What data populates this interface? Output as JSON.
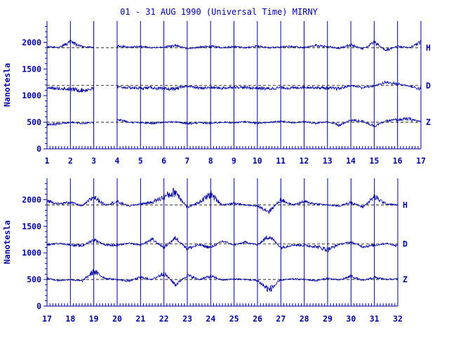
{
  "colors": {
    "ink": "#0000a0",
    "background": "#ffffff"
  },
  "chart_data": {
    "type": "line",
    "title": "01 - 31 AUG 1990 (Universal Time) MIRNY",
    "panels": [
      {
        "xlim": [
          1,
          17
        ],
        "xticks": [
          "1",
          "2",
          "3",
          "4",
          "5",
          "6",
          "7",
          "8",
          "9",
          "10",
          "11",
          "12",
          "13",
          "14",
          "15",
          "16",
          "17"
        ],
        "ylabel": "Nanotesla",
        "ylim": [
          0,
          2400
        ],
        "yticks": [
          "0",
          "500",
          "1000",
          "1500",
          "2000"
        ],
        "grid_x": true,
        "data_gap": [
          3,
          4
        ],
        "series": [
          {
            "name": "H",
            "baseline": 1900,
            "x": [
              1,
              1.5,
              2,
              2.5,
              3,
              4,
              4.5,
              5,
              5.5,
              6,
              6.5,
              7,
              7.5,
              8,
              8.5,
              9,
              9.5,
              10,
              10.5,
              11,
              11.5,
              12,
              12.5,
              13,
              13.5,
              14,
              14.5,
              15,
              15.5,
              16,
              16.5,
              17
            ],
            "values": [
              1920,
              1900,
              2000,
              1920,
              1900,
              1930,
              1910,
              1920,
              1900,
              1910,
              1940,
              1880,
              1910,
              1930,
              1900,
              1920,
              1900,
              1930,
              1900,
              1910,
              1920,
              1900,
              1940,
              1920,
              1890,
              1950,
              1880,
              2000,
              1850,
              1920,
              1900,
              2000
            ]
          },
          {
            "name": "D",
            "baseline": 1190,
            "x": [
              1,
              1.5,
              2,
              2.5,
              3,
              4,
              4.5,
              5,
              5.5,
              6,
              6.5,
              7,
              7.5,
              8,
              8.5,
              9,
              9.5,
              10,
              10.5,
              11,
              11.5,
              12,
              12.5,
              13,
              13.5,
              14,
              14.5,
              15,
              15.5,
              16,
              16.5,
              17
            ],
            "values": [
              1150,
              1140,
              1120,
              1100,
              1130,
              1160,
              1150,
              1140,
              1150,
              1120,
              1130,
              1180,
              1140,
              1150,
              1140,
              1160,
              1150,
              1140,
              1130,
              1150,
              1140,
              1160,
              1150,
              1140,
              1130,
              1190,
              1150,
              1180,
              1250,
              1220,
              1180,
              1120
            ]
          },
          {
            "name": "Z",
            "baseline": 500,
            "x": [
              1,
              1.5,
              2,
              2.5,
              3,
              4,
              4.5,
              5,
              5.5,
              6,
              6.5,
              7,
              7.5,
              8,
              8.5,
              9,
              9.5,
              10,
              10.5,
              11,
              11.5,
              12,
              12.5,
              13,
              13.5,
              14,
              14.5,
              15,
              15.5,
              16,
              16.5,
              17
            ],
            "values": [
              450,
              470,
              500,
              480,
              490,
              560,
              500,
              490,
              480,
              500,
              510,
              470,
              490,
              480,
              500,
              490,
              510,
              480,
              500,
              520,
              490,
              510,
              480,
              510,
              440,
              540,
              520,
              430,
              520,
              550,
              560,
              510
            ]
          }
        ]
      },
      {
        "xlim": [
          17,
          32
        ],
        "xticks": [
          "17",
          "18",
          "19",
          "20",
          "21",
          "22",
          "23",
          "24",
          "25",
          "26",
          "27",
          "28",
          "29",
          "30",
          "31",
          "32"
        ],
        "ylabel": "Nanotesla",
        "ylim": [
          0,
          2400
        ],
        "yticks": [
          "0",
          "500",
          "1000",
          "1500",
          "2000"
        ],
        "grid_x": true,
        "series": [
          {
            "name": "H",
            "baseline": 1900,
            "x": [
              17,
              17.5,
              18,
              18.5,
              19,
              19.5,
              20,
              20.5,
              21,
              21.5,
              22,
              22.5,
              23,
              23.5,
              24,
              24.5,
              25,
              25.5,
              26,
              26.5,
              27,
              27.5,
              28,
              28.5,
              29,
              29.5,
              30,
              30.5,
              31,
              31.5,
              32
            ],
            "values": [
              1980,
              1920,
              1950,
              1880,
              2050,
              1900,
              1960,
              1880,
              1920,
              1950,
              2050,
              2150,
              1850,
              1950,
              2100,
              1900,
              1930,
              1900,
              1880,
              1780,
              2000,
              1900,
              1960,
              1920,
              1900,
              1880,
              1950,
              1860,
              2050,
              1920,
              1900
            ]
          },
          {
            "name": "D",
            "baseline": 1170,
            "x": [
              17,
              17.5,
              18,
              18.5,
              19,
              19.5,
              20,
              20.5,
              21,
              21.5,
              22,
              22.5,
              23,
              23.5,
              24,
              24.5,
              25,
              25.5,
              26,
              26.5,
              27,
              27.5,
              28,
              28.5,
              29,
              29.5,
              30,
              30.5,
              31,
              31.5,
              32
            ],
            "values": [
              1150,
              1180,
              1150,
              1130,
              1250,
              1150,
              1140,
              1180,
              1150,
              1250,
              1100,
              1280,
              1080,
              1150,
              1100,
              1220,
              1150,
              1200,
              1150,
              1320,
              1100,
              1150,
              1140,
              1120,
              1060,
              1160,
              1200,
              1120,
              1140,
              1180,
              1130
            ]
          },
          {
            "name": "Z",
            "baseline": 500,
            "x": [
              17,
              17.5,
              18,
              18.5,
              19,
              19.5,
              20,
              20.5,
              21,
              21.5,
              22,
              22.5,
              23,
              23.5,
              24,
              24.5,
              25,
              25.5,
              26,
              26.5,
              27,
              27.5,
              28,
              28.5,
              29,
              29.5,
              30,
              30.5,
              31,
              31.5,
              32
            ],
            "values": [
              520,
              480,
              500,
              470,
              650,
              520,
              500,
              470,
              540,
              500,
              620,
              400,
              580,
              500,
              560,
              490,
              510,
              500,
              480,
              300,
              490,
              510,
              500,
              480,
              520,
              490,
              560,
              480,
              540,
              500,
              510
            ]
          }
        ]
      }
    ]
  }
}
